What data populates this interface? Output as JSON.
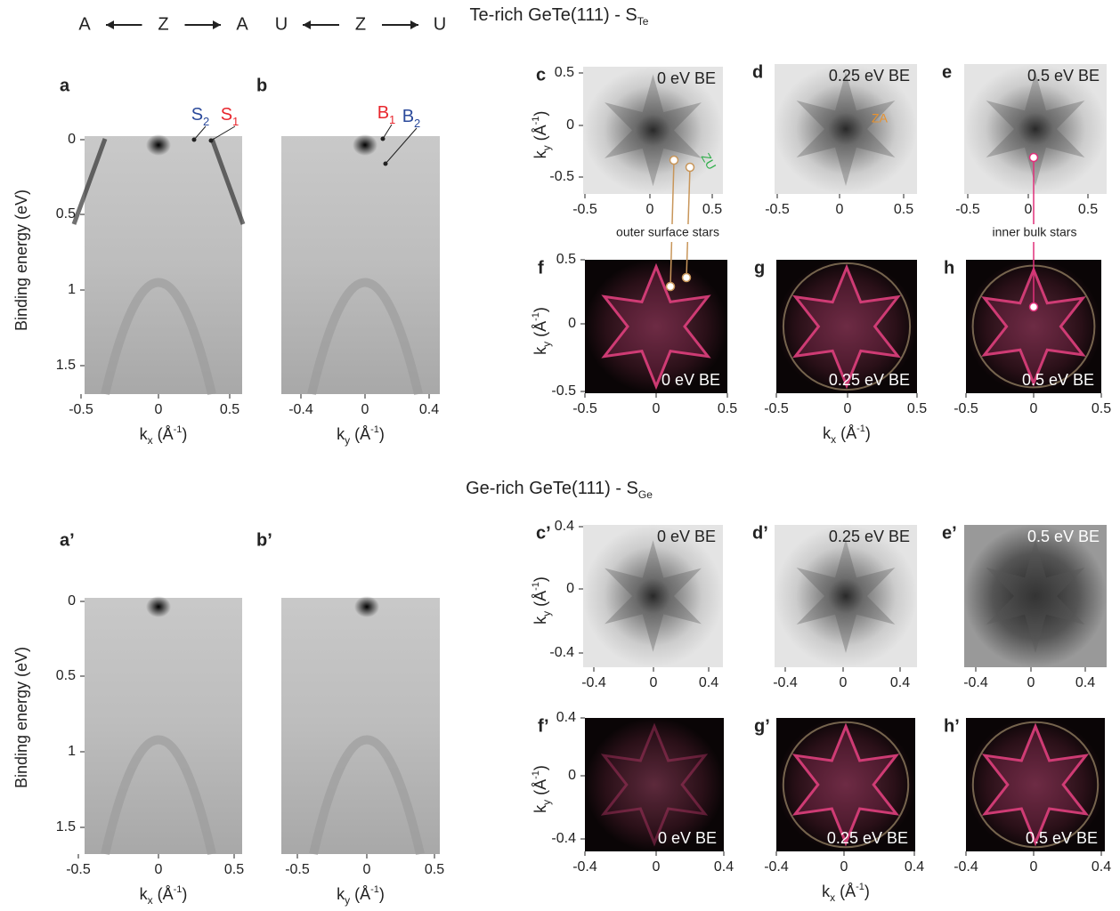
{
  "sections": [
    {
      "title": {
        "text": "Te-rich GeTe(111) - S",
        "sub": "Te"
      },
      "directions": [
        {
          "left": "A",
          "center": "Z",
          "right": "A"
        },
        {
          "left": "U",
          "center": "Z",
          "right": "U"
        }
      ],
      "cuts": [
        {
          "label": "a",
          "y_label": "Binding energy (eV)",
          "y_ticks": [
            0,
            0.5,
            1,
            1.5
          ],
          "x_ticks": [
            -0.5,
            0,
            0.5
          ],
          "x_label": {
            "base": "k",
            "sub": "x",
            "unit": " (Å",
            "sup": "-1",
            "close": ")"
          },
          "markers": [
            {
              "text": "S",
              "sub": "2",
              "color": "#2b4a9b"
            },
            {
              "text": "S",
              "sub": "1",
              "color": "#e8262d"
            }
          ]
        },
        {
          "label": "b",
          "x_ticks": [
            -0.4,
            0,
            0.4
          ],
          "x_label": {
            "base": "k",
            "sub": "y",
            "unit": " (Å",
            "sup": "-1",
            "close": ")"
          },
          "markers": [
            {
              "text": "B",
              "sub": "1",
              "color": "#e8262d"
            },
            {
              "text": "B",
              "sub": "2",
              "color": "#2b4a9b"
            }
          ]
        }
      ],
      "maps": [
        {
          "label": "c",
          "energy": "0 eV BE",
          "x_ticks": [
            -0.5,
            0,
            0.5
          ],
          "y_ticks": [
            0.5,
            0,
            -0.5
          ],
          "y_label": {
            "base": "k",
            "sub": "y",
            "unit": " (Å",
            "sup": "-1",
            "close": ")"
          },
          "notes": [
            {
              "text": "ZU",
              "color": "#2fae4a"
            }
          ]
        },
        {
          "label": "d",
          "energy": "0.25 eV BE",
          "x_ticks": [
            -0.5,
            0,
            0.5
          ],
          "notes": [
            {
              "text": "ZA",
              "color": "#e8922e"
            }
          ]
        },
        {
          "label": "e",
          "energy": "0.5 eV BE",
          "x_ticks": [
            -0.5,
            0,
            0.5
          ]
        },
        {
          "label": "f",
          "energy": "0 eV BE",
          "energy_color": "#ffffff",
          "x_ticks": [
            -0.5,
            0,
            0.5
          ],
          "y_ticks": [
            0.5,
            0,
            -0.5
          ],
          "y_label": {
            "base": "k",
            "sub": "y",
            "unit": " (Å",
            "sup": "-1",
            "close": ")"
          }
        },
        {
          "label": "g",
          "energy": "0.25 eV BE",
          "energy_color": "#ffffff",
          "x_ticks": [
            -0.5,
            0,
            0.5
          ],
          "x_label": {
            "base": "k",
            "sub": "x",
            "unit": " (Å",
            "sup": "-1",
            "close": ")"
          }
        },
        {
          "label": "h",
          "energy": "0.5 eV BE",
          "energy_color": "#ffffff",
          "x_ticks": [
            -0.5,
            0,
            0.5
          ]
        }
      ],
      "callouts": [
        {
          "text": "outer surface stars"
        },
        {
          "text": "inner bulk stars"
        }
      ]
    },
    {
      "title": {
        "text": "Ge-rich GeTe(111) - S",
        "sub": "Ge"
      },
      "cuts": [
        {
          "label": "a’",
          "y_label": "Binding energy (eV)",
          "y_ticks": [
            0,
            0.5,
            1,
            1.5
          ],
          "x_ticks": [
            -0.5,
            0,
            0.5
          ],
          "x_label": {
            "base": "k",
            "sub": "x",
            "unit": " (Å",
            "sup": "-1",
            "close": ")"
          }
        },
        {
          "label": "b’",
          "x_ticks": [
            -0.5,
            0,
            0.5
          ],
          "x_label": {
            "base": "k",
            "sub": "y",
            "unit": " (Å",
            "sup": "-1",
            "close": ")"
          }
        }
      ],
      "maps": [
        {
          "label": "c’",
          "energy": "0 eV BE",
          "x_ticks": [
            -0.4,
            0,
            0.4
          ],
          "y_ticks": [
            0.4,
            0,
            -0.4
          ],
          "y_label": {
            "base": "k",
            "sub": "y",
            "unit": " (Å",
            "sup": "-1",
            "close": ")"
          }
        },
        {
          "label": "d’",
          "energy": "0.25 eV BE",
          "x_ticks": [
            -0.4,
            0,
            0.4
          ]
        },
        {
          "label": "e’",
          "energy": "0.5 eV BE",
          "energy_color": "#ffffff",
          "x_ticks": [
            -0.4,
            0,
            0.4
          ]
        },
        {
          "label": "f’",
          "energy": "0 eV BE",
          "energy_color": "#ffffff",
          "x_ticks": [
            -0.4,
            0,
            0.4
          ],
          "y_ticks": [
            0.4,
            0,
            -0.4
          ],
          "y_label": {
            "base": "k",
            "sub": "y",
            "unit": " (Å",
            "sup": "-1",
            "close": ")"
          }
        },
        {
          "label": "g’",
          "energy": "0.25 eV BE",
          "energy_color": "#ffffff",
          "x_ticks": [
            -0.4,
            0,
            0.4
          ],
          "x_label": {
            "base": "k",
            "sub": "x",
            "unit": " (Å",
            "sup": "-1",
            "close": ")"
          }
        },
        {
          "label": "h’",
          "energy": "0.5 eV BE",
          "energy_color": "#ffffff",
          "x_ticks": [
            -0.4,
            0,
            0.4
          ]
        }
      ]
    }
  ]
}
